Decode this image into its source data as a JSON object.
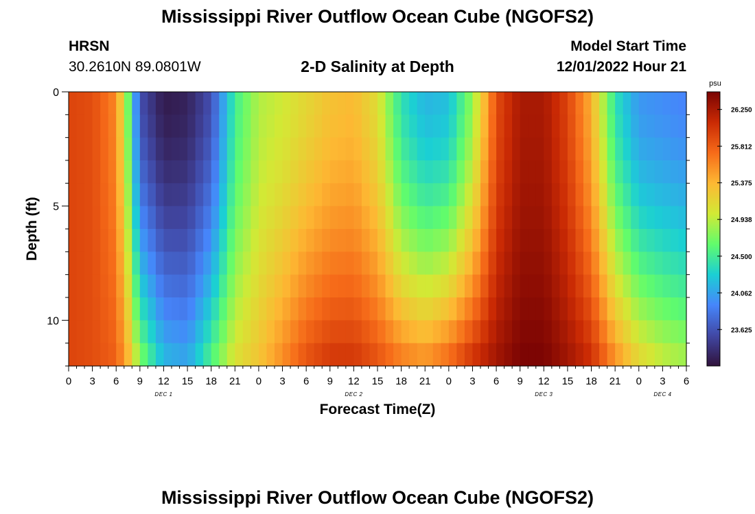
{
  "page": {
    "title": "Mississippi River Outflow Ocean Cube (NGOFS2)",
    "footer_title": "Mississippi River Outflow Ocean Cube (NGOFS2)"
  },
  "station": {
    "name": "HRSN",
    "coords": "30.2610N  89.0801W"
  },
  "model": {
    "label": "Model Start Time",
    "start": "12/01/2022 Hour 21"
  },
  "chart_data": {
    "type": "heatmap",
    "title": "2-D Salinity at Depth",
    "xlabel": "Forecast Time(Z)",
    "ylabel": "Depth (ft)",
    "x_hours": [
      0,
      78
    ],
    "x_tick_labels": [
      "0",
      "3",
      "6",
      "9",
      "12",
      "15",
      "18",
      "21",
      "0",
      "3",
      "6",
      "9",
      "12",
      "15",
      "18",
      "21",
      "0",
      "3",
      "6",
      "9",
      "12",
      "15",
      "18",
      "21",
      "0",
      "3",
      "6"
    ],
    "day_labels": [
      {
        "label": "DEC 1",
        "hour": 12
      },
      {
        "label": "DEC 2",
        "hour": 36
      },
      {
        "label": "DEC 3",
        "hour": 60
      },
      {
        "label": "DEC 4",
        "hour": 75
      }
    ],
    "ylim": [
      0,
      12
    ],
    "y_ticks": [
      0,
      5,
      10
    ],
    "colorbar": {
      "unit": "psu",
      "range": [
        23.19,
        26.46
      ],
      "tick_values": [
        26.25,
        25.812,
        25.375,
        24.938,
        24.5,
        24.062,
        23.625
      ],
      "tick_labels": [
        "26.250",
        "25.812",
        "25.375",
        "24.938",
        "24.500",
        "24.062",
        "23.625"
      ]
    },
    "colors": {
      "stops": [
        "#30123b",
        "#4148a5",
        "#4686fb",
        "#1bcfd4",
        "#61fc6c",
        "#d2e935",
        "#fdb833",
        "#f66b19",
        "#ca2a04",
        "#7a0403"
      ]
    },
    "depth_levels_ft": [
      0.5,
      1.5,
      2.5,
      3.5,
      4.5,
      5.5,
      6.5,
      7.5,
      8.5,
      9.5,
      10.5,
      11.5
    ],
    "salinity_profile": {
      "hours": [
        0,
        3,
        6,
        7.5,
        9,
        12,
        15,
        18,
        21,
        24,
        27,
        30,
        33,
        36,
        39,
        42,
        45,
        48,
        51,
        54,
        57,
        60,
        63,
        66,
        69,
        72,
        75,
        78
      ],
      "surface_psu": [
        25.95,
        25.9,
        25.6,
        24.7,
        23.6,
        23.25,
        23.3,
        23.6,
        24.5,
        24.9,
        25.0,
        25.15,
        25.3,
        25.35,
        25.1,
        24.4,
        24.15,
        24.2,
        24.8,
        25.9,
        26.25,
        26.25,
        25.95,
        25.4,
        24.4,
        24.0,
        23.95,
        23.9
      ],
      "bottom_psu": [
        25.95,
        25.9,
        25.8,
        25.4,
        24.8,
        24.2,
        24.1,
        24.6,
        25.1,
        25.3,
        25.6,
        25.9,
        26.05,
        26.05,
        25.9,
        25.7,
        25.6,
        25.8,
        26.1,
        26.3,
        26.46,
        26.46,
        26.3,
        26.1,
        25.6,
        25.2,
        25.0,
        24.9
      ]
    }
  }
}
